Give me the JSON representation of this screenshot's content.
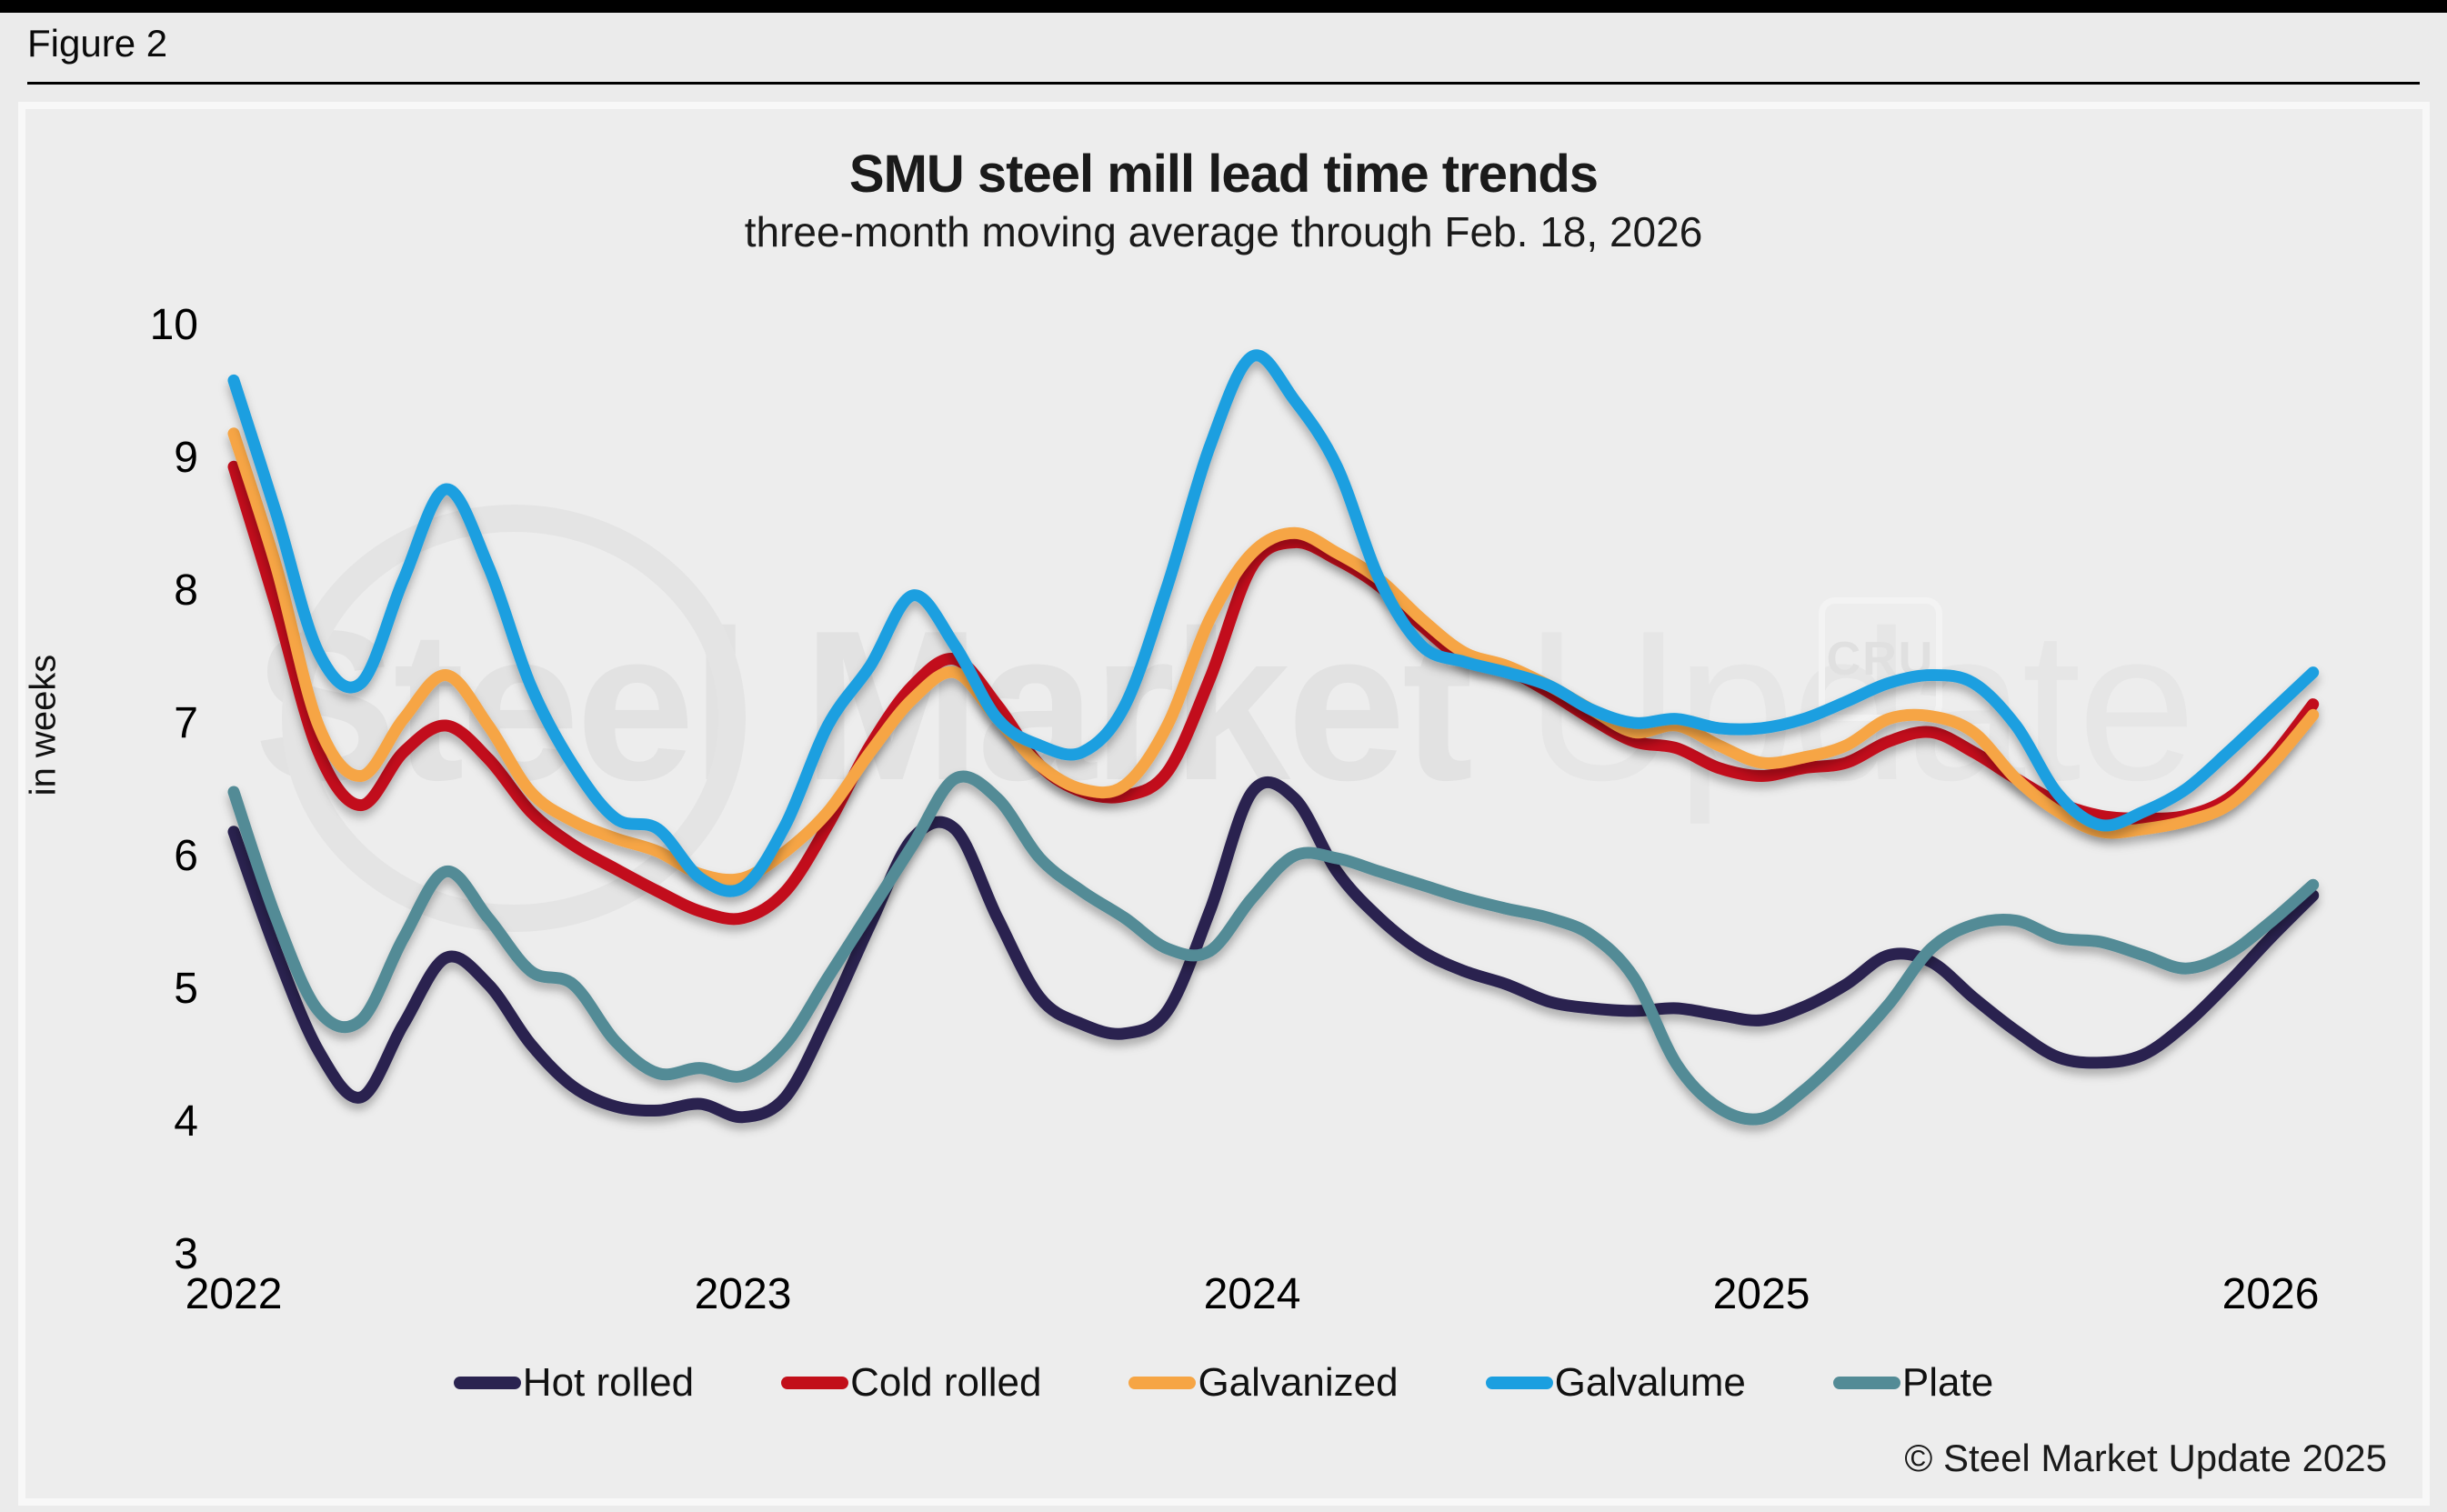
{
  "page": {
    "figure_label": "Figure 2",
    "copyright": "© Steel Market Update 2025"
  },
  "watermarks": {
    "main_bold": "Steel Market",
    "main_light": " Update",
    "cru": "CRU"
  },
  "chart_data": {
    "type": "line",
    "title": "SMU steel mill lead time trends",
    "subtitle": "three-month moving average through Feb. 18, 2026",
    "ylabel": "in weeks",
    "xlabel": "",
    "ylim": [
      3,
      10
    ],
    "yticks": [
      10,
      9,
      8,
      7,
      6,
      5,
      4,
      3
    ],
    "xticks": [
      2022,
      2023,
      2024,
      2025,
      2026
    ],
    "grid": false,
    "legend_position": "bottom",
    "x_start_year": 2022,
    "x_interval": "monthly",
    "series": [
      {
        "name": "Hot rolled",
        "color": "#2a2350",
        "values": [
          6.2,
          5.3,
          4.55,
          4.2,
          4.75,
          5.25,
          5.05,
          4.6,
          4.28,
          4.13,
          4.1,
          4.15,
          4.05,
          4.2,
          4.8,
          5.5,
          6.15,
          6.22,
          5.55,
          4.95,
          4.75,
          4.68,
          4.85,
          5.6,
          6.5,
          6.45,
          5.9,
          5.55,
          5.3,
          5.15,
          5.05,
          4.92,
          4.87,
          4.85,
          4.87,
          4.82,
          4.78,
          4.88,
          5.05,
          5.27,
          5.22,
          4.95,
          4.7,
          4.5,
          4.46,
          4.52,
          4.75,
          5.06,
          5.4,
          5.72
        ]
      },
      {
        "name": "Cold rolled",
        "color": "#c20f1a",
        "values": [
          8.95,
          7.9,
          6.8,
          6.4,
          6.8,
          7.0,
          6.75,
          6.35,
          6.1,
          5.92,
          5.75,
          5.6,
          5.55,
          5.75,
          6.25,
          6.85,
          7.3,
          7.5,
          7.15,
          6.7,
          6.5,
          6.47,
          6.65,
          7.35,
          8.2,
          8.38,
          8.25,
          8.05,
          7.75,
          7.5,
          7.42,
          7.25,
          7.05,
          6.88,
          6.83,
          6.68,
          6.62,
          6.68,
          6.72,
          6.88,
          6.95,
          6.8,
          6.6,
          6.42,
          6.32,
          6.3,
          6.32,
          6.45,
          6.75,
          7.16
        ]
      },
      {
        "name": "Galvanized",
        "color": "#f6a544",
        "values": [
          9.2,
          8.2,
          7.0,
          6.62,
          7.05,
          7.38,
          7.0,
          6.5,
          6.28,
          6.15,
          6.05,
          5.88,
          5.85,
          6.05,
          6.35,
          6.8,
          7.2,
          7.4,
          7.05,
          6.7,
          6.52,
          6.55,
          7.0,
          7.8,
          8.3,
          8.45,
          8.3,
          8.1,
          7.8,
          7.55,
          7.45,
          7.3,
          7.12,
          6.95,
          7.0,
          6.85,
          6.72,
          6.76,
          6.85,
          7.05,
          7.07,
          6.95,
          6.6,
          6.35,
          6.2,
          6.22,
          6.28,
          6.4,
          6.7,
          7.08
        ]
      },
      {
        "name": "Galvalume",
        "color": "#1b9fe0",
        "values": [
          9.6,
          8.6,
          7.55,
          7.32,
          8.1,
          8.78,
          8.2,
          7.3,
          6.7,
          6.3,
          6.22,
          5.85,
          5.78,
          6.25,
          7.0,
          7.45,
          7.98,
          7.6,
          7.05,
          6.85,
          6.8,
          7.15,
          8.05,
          9.1,
          9.78,
          9.45,
          8.95,
          8.1,
          7.6,
          7.48,
          7.4,
          7.3,
          7.12,
          7.02,
          7.05,
          6.98,
          6.98,
          7.05,
          7.18,
          7.32,
          7.38,
          7.32,
          7.0,
          6.48,
          6.25,
          6.35,
          6.52,
          6.8,
          7.1,
          7.4
        ]
      },
      {
        "name": "Plate",
        "color": "#538b96",
        "values": [
          6.5,
          5.55,
          4.85,
          4.78,
          5.4,
          5.9,
          5.55,
          5.15,
          5.05,
          4.62,
          4.38,
          4.42,
          4.36,
          4.6,
          5.1,
          5.6,
          6.1,
          6.6,
          6.45,
          6.0,
          5.75,
          5.55,
          5.32,
          5.3,
          5.7,
          6.02,
          6.0,
          5.9,
          5.8,
          5.7,
          5.62,
          5.55,
          5.42,
          5.1,
          4.45,
          4.12,
          4.04,
          4.25,
          4.55,
          4.9,
          5.32,
          5.5,
          5.53,
          5.4,
          5.37,
          5.27,
          5.17,
          5.28,
          5.52,
          5.8
        ]
      }
    ]
  }
}
